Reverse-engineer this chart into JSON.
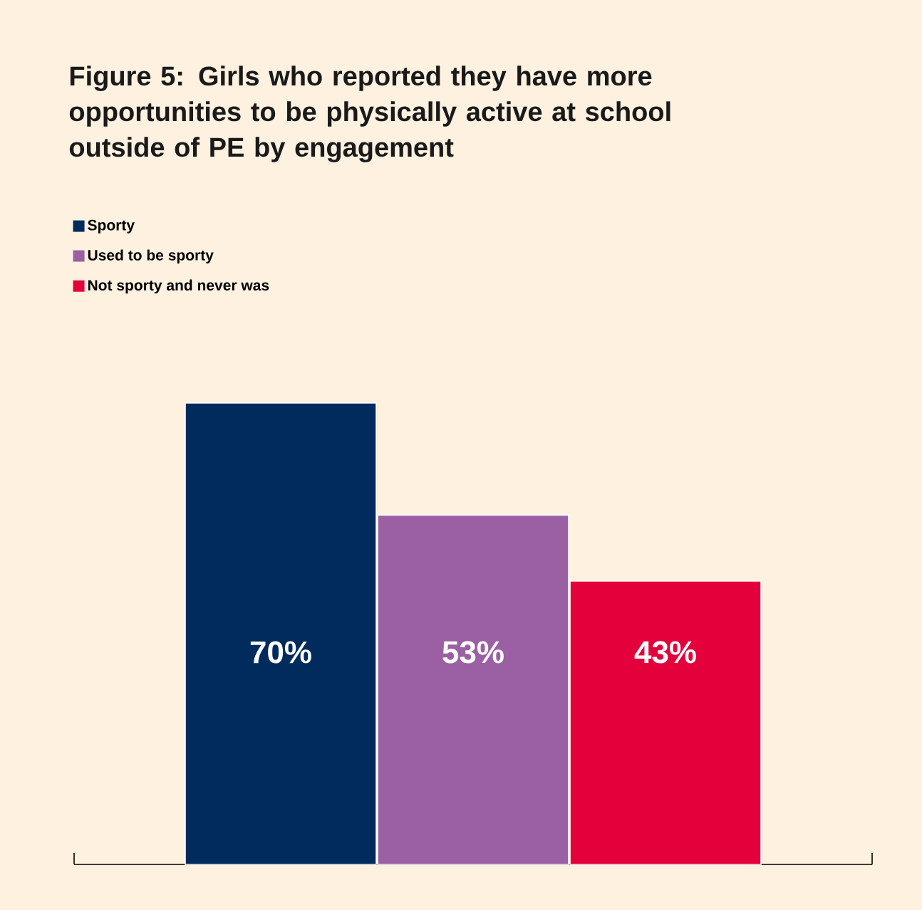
{
  "chart_data": {
    "type": "bar",
    "title": "Figure 5: Girls who reported they have more opportunities to be physically active at school outside of PE by engagement",
    "categories": [
      null
    ],
    "series": [
      {
        "name": "Sporty",
        "color": "#002b5c",
        "values": [
          70
        ],
        "value_labels": [
          "70%"
        ]
      },
      {
        "name": "Used to be sporty",
        "color": "#9b5fa3",
        "values": [
          53
        ],
        "value_labels": [
          "53%"
        ]
      },
      {
        "name": "Not sporty and never was",
        "color": "#e4003b",
        "values": [
          43
        ],
        "value_labels": [
          "43%"
        ]
      }
    ],
    "legend": "top left"
  }
}
